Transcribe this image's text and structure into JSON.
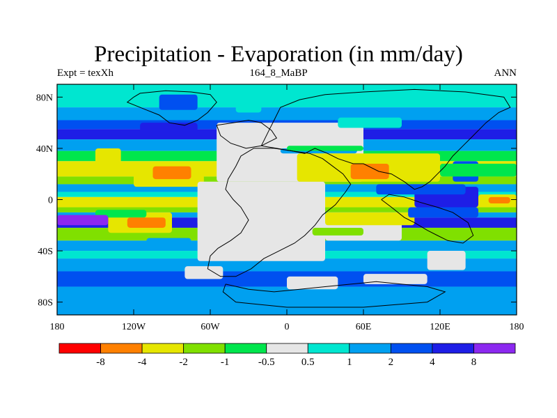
{
  "chart_data": {
    "type": "heatmap",
    "title": "Precipitation - Evaporation (in mm/day)",
    "left_string": "Expt = texXh",
    "center_string": "164_8_MaBP",
    "right_string": "ANN",
    "x_ticks": [
      "180",
      "120W",
      "60W",
      "0",
      "60E",
      "120E",
      "180"
    ],
    "x_tick_values": [
      -180,
      -120,
      -60,
      0,
      60,
      120,
      180
    ],
    "y_ticks": [
      "80N",
      "40N",
      "0",
      "40S",
      "80S"
    ],
    "y_tick_values": [
      80,
      40,
      0,
      -40,
      -80
    ],
    "xlim": [
      -180,
      180
    ],
    "ylim": [
      -90,
      90
    ],
    "colorbar": {
      "labels": [
        "-8",
        "-4",
        "-2",
        "-1",
        "-0.5",
        "0.5",
        "1",
        "2",
        "4",
        "8"
      ],
      "colors": [
        "#ff0000",
        "#ff8000",
        "#e6e600",
        "#80e000",
        "#00e64d",
        "#e6e6e6",
        "#00e6d0",
        "#00a0f0",
        "#0050f0",
        "#1e1ee6",
        "#8c28f0"
      ]
    },
    "zonal_bands": [
      {
        "lat": [
          72,
          90
        ],
        "class": 6
      },
      {
        "lat": [
          62,
          72
        ],
        "class": 7
      },
      {
        "lat": [
          55,
          62
        ],
        "class": 8
      },
      {
        "lat": [
          47,
          55
        ],
        "class": 9
      },
      {
        "lat": [
          38,
          47
        ],
        "class": 7
      },
      {
        "lat": [
          30,
          38
        ],
        "class": 4
      },
      {
        "lat": [
          18,
          30
        ],
        "class": 2
      },
      {
        "lat": [
          12,
          18
        ],
        "class": 3
      },
      {
        "lat": [
          6,
          12
        ],
        "class": 7
      },
      {
        "lat": [
          2,
          6
        ],
        "class": 6
      },
      {
        "lat": [
          -6,
          2
        ],
        "class": 2
      },
      {
        "lat": [
          -10,
          -6
        ],
        "class": 3
      },
      {
        "lat": [
          -14,
          -10
        ],
        "class": 7
      },
      {
        "lat": [
          -22,
          -14
        ],
        "class": 9
      },
      {
        "lat": [
          -32,
          -22
        ],
        "class": 3
      },
      {
        "lat": [
          -40,
          -32
        ],
        "class": 7
      },
      {
        "lat": [
          -46,
          -40
        ],
        "class": 6
      },
      {
        "lat": [
          -56,
          -46
        ],
        "class": 7
      },
      {
        "lat": [
          -68,
          -56
        ],
        "class": 8
      },
      {
        "lat": [
          -90,
          -68
        ],
        "class": 7
      }
    ],
    "regions": [
      {
        "lon": [
          -150,
          -130
        ],
        "lat": [
          28,
          40
        ],
        "class": 2
      },
      {
        "lon": [
          -120,
          -65
        ],
        "lat": [
          10,
          28
        ],
        "class": 2
      },
      {
        "lon": [
          -105,
          -75
        ],
        "lat": [
          16,
          26
        ],
        "class": 1
      },
      {
        "lon": [
          -140,
          -90
        ],
        "lat": [
          -26,
          -10
        ],
        "class": 2
      },
      {
        "lon": [
          -150,
          -110
        ],
        "lat": [
          -14,
          -8
        ],
        "class": 4
      },
      {
        "lon": [
          -125,
          -95
        ],
        "lat": [
          -22,
          -14
        ],
        "class": 1
      },
      {
        "lon": [
          -70,
          -35
        ],
        "lat": [
          -20,
          -6
        ],
        "class": 2
      },
      {
        "lon": [
          -110,
          -75
        ],
        "lat": [
          -40,
          -30
        ],
        "class": 7
      },
      {
        "lon": [
          -115,
          -70
        ],
        "lat": [
          52,
          60
        ],
        "class": 9
      },
      {
        "lon": [
          -180,
          -140
        ],
        "lat": [
          -20,
          -12
        ],
        "class": 10
      },
      {
        "lon": [
          -55,
          60
        ],
        "lat": [
          14,
          60
        ],
        "class": 5
      },
      {
        "lon": [
          -70,
          30
        ],
        "lat": [
          -48,
          14
        ],
        "class": 5
      },
      {
        "lon": [
          30,
          90
        ],
        "lat": [
          -32,
          -10
        ],
        "class": 5
      },
      {
        "lon": [
          110,
          140
        ],
        "lat": [
          -55,
          -40
        ],
        "class": 5
      },
      {
        "lon": [
          -5,
          55
        ],
        "lat": [
          36,
          40
        ],
        "class": 7
      },
      {
        "lon": [
          0,
          60
        ],
        "lat": [
          38,
          42
        ],
        "class": 4
      },
      {
        "lon": [
          8,
          120
        ],
        "lat": [
          14,
          36
        ],
        "class": 2
      },
      {
        "lon": [
          50,
          80
        ],
        "lat": [
          16,
          28
        ],
        "class": 1
      },
      {
        "lon": [
          30,
          100
        ],
        "lat": [
          -20,
          -10
        ],
        "class": 2
      },
      {
        "lon": [
          20,
          60
        ],
        "lat": [
          -28,
          -22
        ],
        "class": 3
      },
      {
        "lon": [
          100,
          150
        ],
        "lat": [
          -6,
          10
        ],
        "class": 9
      },
      {
        "lon": [
          70,
          140
        ],
        "lat": [
          4,
          12
        ],
        "class": 8
      },
      {
        "lon": [
          130,
          150
        ],
        "lat": [
          14,
          30
        ],
        "class": 8
      },
      {
        "lon": [
          95,
          150
        ],
        "lat": [
          -14,
          -6
        ],
        "class": 8
      },
      {
        "lon": [
          150,
          180
        ],
        "lat": [
          -6,
          4
        ],
        "class": 2
      },
      {
        "lon": [
          158,
          175
        ],
        "lat": [
          -3,
          2
        ],
        "class": 1
      },
      {
        "lon": [
          120,
          180
        ],
        "lat": [
          18,
          28
        ],
        "class": 4
      },
      {
        "lon": [
          -80,
          -50
        ],
        "lat": [
          -62,
          -52
        ],
        "class": 5
      },
      {
        "lon": [
          0,
          40
        ],
        "lat": [
          -70,
          -60
        ],
        "class": 5
      },
      {
        "lon": [
          60,
          110
        ],
        "lat": [
          -66,
          -58
        ],
        "class": 5
      },
      {
        "lon": [
          40,
          90
        ],
        "lat": [
          56,
          64
        ],
        "class": 6
      },
      {
        "lon": [
          -100,
          -70
        ],
        "lat": [
          70,
          82
        ],
        "class": 8
      },
      {
        "lon": [
          -40,
          -20
        ],
        "lat": [
          68,
          80
        ],
        "class": 6
      }
    ],
    "coastline": [
      [
        [
          -120,
          80
        ],
        [
          -115,
          83
        ],
        [
          -95,
          85
        ],
        [
          -75,
          84
        ],
        [
          -60,
          82
        ],
        [
          -55,
          76
        ],
        [
          -62,
          68
        ],
        [
          -70,
          62
        ],
        [
          -80,
          58
        ],
        [
          -92,
          60
        ],
        [
          -100,
          66
        ],
        [
          -110,
          70
        ],
        [
          -125,
          76
        ],
        [
          -120,
          80
        ]
      ],
      [
        [
          -55,
          58
        ],
        [
          -42,
          60
        ],
        [
          -30,
          62
        ],
        [
          -20,
          60
        ],
        [
          -12,
          54
        ],
        [
          -8,
          48
        ],
        [
          -20,
          42
        ],
        [
          -32,
          40
        ],
        [
          -44,
          44
        ],
        [
          -52,
          50
        ],
        [
          -55,
          58
        ]
      ],
      [
        [
          -20,
          42
        ],
        [
          -8,
          40
        ],
        [
          4,
          38
        ],
        [
          14,
          36
        ],
        [
          22,
          40
        ],
        [
          32,
          36
        ],
        [
          40,
          32
        ],
        [
          52,
          28
        ],
        [
          60,
          28
        ],
        [
          72,
          22
        ],
        [
          82,
          20
        ],
        [
          92,
          14
        ],
        [
          100,
          8
        ],
        [
          106,
          10
        ],
        [
          112,
          14
        ],
        [
          118,
          20
        ],
        [
          124,
          26
        ],
        [
          130,
          34
        ],
        [
          138,
          42
        ],
        [
          146,
          50
        ],
        [
          156,
          60
        ],
        [
          166,
          68
        ],
        [
          175,
          72
        ],
        [
          170,
          80
        ],
        [
          140,
          84
        ],
        [
          100,
          86
        ],
        [
          60,
          84
        ],
        [
          30,
          82
        ],
        [
          10,
          78
        ],
        [
          -5,
          72
        ],
        [
          -10,
          62
        ],
        [
          -14,
          54
        ],
        [
          -20,
          42
        ]
      ],
      [
        [
          -26,
          40
        ],
        [
          -36,
          34
        ],
        [
          -40,
          26
        ],
        [
          -46,
          16
        ],
        [
          -48,
          8
        ],
        [
          -42,
          0
        ],
        [
          -36,
          -6
        ],
        [
          -30,
          -16
        ],
        [
          -36,
          -26
        ],
        [
          -44,
          -32
        ],
        [
          -54,
          -38
        ],
        [
          -60,
          -44
        ],
        [
          -62,
          -54
        ],
        [
          -52,
          -60
        ],
        [
          -40,
          -60
        ],
        [
          -28,
          -54
        ],
        [
          -18,
          -46
        ],
        [
          -6,
          -40
        ],
        [
          6,
          -34
        ],
        [
          14,
          -28
        ],
        [
          22,
          -20
        ],
        [
          28,
          -12
        ],
        [
          38,
          -4
        ],
        [
          46,
          6
        ],
        [
          50,
          12
        ],
        [
          44,
          20
        ],
        [
          36,
          26
        ],
        [
          28,
          32
        ],
        [
          18,
          36
        ],
        [
          4,
          38
        ],
        [
          -10,
          40
        ],
        [
          -26,
          40
        ]
      ],
      [
        [
          74,
          0
        ],
        [
          82,
          -6
        ],
        [
          92,
          -14
        ],
        [
          100,
          -18
        ],
        [
          110,
          -24
        ],
        [
          118,
          -28
        ],
        [
          126,
          -32
        ],
        [
          138,
          -34
        ],
        [
          146,
          -28
        ],
        [
          142,
          -18
        ],
        [
          130,
          -10
        ],
        [
          118,
          -6
        ],
        [
          104,
          -2
        ],
        [
          92,
          2
        ],
        [
          80,
          4
        ],
        [
          74,
          0
        ]
      ],
      [
        [
          -48,
          -66
        ],
        [
          -30,
          -70
        ],
        [
          -10,
          -72
        ],
        [
          10,
          -70
        ],
        [
          30,
          -68
        ],
        [
          50,
          -66
        ],
        [
          70,
          -64
        ],
        [
          90,
          -66
        ],
        [
          110,
          -68
        ],
        [
          124,
          -72
        ],
        [
          110,
          -80
        ],
        [
          60,
          -84
        ],
        [
          0,
          -84
        ],
        [
          -40,
          -80
        ],
        [
          -50,
          -72
        ],
        [
          -48,
          -66
        ]
      ]
    ]
  }
}
